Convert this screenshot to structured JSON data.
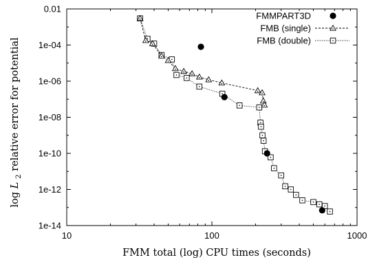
{
  "chart_data": {
    "type": "scatter",
    "xlabel": "FMM total (log) CPU times (seconds)",
    "ylabel_prefix": "log ",
    "ylabel_symbol": "L",
    "ylabel_subscript": "2",
    "ylabel_suffix": " relative error for potential",
    "x_scale": "log",
    "y_scale": "log",
    "xlim": [
      10,
      1000
    ],
    "ylim": [
      1e-14,
      0.01
    ],
    "x_ticks": [
      {
        "value": 10,
        "label": "10"
      },
      {
        "value": 100,
        "label": "100"
      },
      {
        "value": 1000,
        "label": "1000"
      }
    ],
    "y_ticks": [
      {
        "value": 0.01,
        "label": "0.01"
      },
      {
        "value": 0.0001,
        "label": "1e-04"
      },
      {
        "value": 1e-06,
        "label": "1e-06"
      },
      {
        "value": 1e-08,
        "label": "1e-08"
      },
      {
        "value": 1e-10,
        "label": "1e-10"
      },
      {
        "value": 1e-12,
        "label": "1e-12"
      },
      {
        "value": 1e-14,
        "label": "1e-14"
      }
    ],
    "legend_position": "top-right",
    "grid": false,
    "series": [
      {
        "name": "FMMPART3D",
        "marker": "filled-circle",
        "line": "none",
        "color": "#000000",
        "points": [
          [
            84,
            8e-05
          ],
          [
            122,
            1.3e-07
          ],
          [
            240,
            1e-10
          ],
          [
            575,
            7e-14
          ]
        ]
      },
      {
        "name": "FMB (single)",
        "marker": "triangle",
        "line": "dashed",
        "color": "#000000",
        "points": [
          [
            32,
            0.003
          ],
          [
            35,
            0.00018
          ],
          [
            39,
            0.00012
          ],
          [
            45,
            2.5e-05
          ],
          [
            50,
            1.4e-05
          ],
          [
            56,
            5e-06
          ],
          [
            64,
            3.5e-06
          ],
          [
            73,
            2.6e-06
          ],
          [
            82,
            1.7e-06
          ],
          [
            95,
            1.2e-06
          ],
          [
            117,
            8e-07
          ],
          [
            207,
            3e-07
          ],
          [
            222,
            2.3e-07
          ],
          [
            226,
            8e-08
          ],
          [
            230,
            4.8e-08
          ]
        ]
      },
      {
        "name": "FMB (double)",
        "marker": "open-square",
        "line": "dotted",
        "color": "#000000",
        "points": [
          [
            32,
            0.003
          ],
          [
            36,
            0.00022
          ],
          [
            40,
            0.00012
          ],
          [
            45,
            2.8e-05
          ],
          [
            53,
            1.6e-05
          ],
          [
            57,
            2.2e-06
          ],
          [
            67,
            1.5e-06
          ],
          [
            82,
            5e-07
          ],
          [
            118,
            2e-07
          ],
          [
            155,
            4.5e-08
          ],
          [
            212,
            3.5e-08
          ],
          [
            216,
            5e-09
          ],
          [
            218,
            3e-09
          ],
          [
            223,
            1e-09
          ],
          [
            227,
            5e-10
          ],
          [
            232,
            1.3e-10
          ],
          [
            254,
            6e-11
          ],
          [
            268,
            1.5e-11
          ],
          [
            300,
            6e-12
          ],
          [
            320,
            1.5e-12
          ],
          [
            350,
            1e-12
          ],
          [
            380,
            5e-13
          ],
          [
            420,
            2.5e-13
          ],
          [
            500,
            2e-13
          ],
          [
            550,
            1.5e-13
          ],
          [
            600,
            1.2e-13
          ],
          [
            650,
            6e-14
          ]
        ]
      }
    ]
  }
}
